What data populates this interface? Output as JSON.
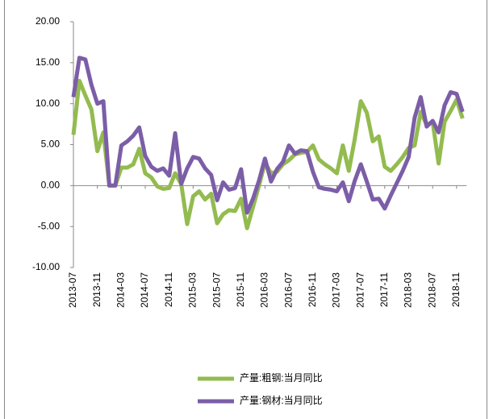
{
  "chart_data": {
    "type": "line",
    "categories": [
      "2013-07",
      null,
      null,
      null,
      "2013-11",
      null,
      null,
      null,
      "2014-03",
      null,
      null,
      null,
      "2014-07",
      null,
      null,
      null,
      "2014-11",
      null,
      null,
      null,
      "2015-03",
      null,
      null,
      null,
      "2015-07",
      null,
      null,
      null,
      "2015-11",
      null,
      null,
      null,
      "2016-03",
      null,
      null,
      null,
      "2016-07",
      null,
      null,
      null,
      "2016-11",
      null,
      null,
      null,
      "2017-03",
      null,
      null,
      null,
      "2017-07",
      null,
      null,
      null,
      "2017-11",
      null,
      null,
      null,
      "2018-03",
      null,
      null,
      null,
      "2018-07",
      null,
      null,
      null,
      "2018-11",
      null
    ],
    "series": [
      {
        "name": "产量:粗钢:当月同比",
        "color": "#93bb4f",
        "values": [
          6.2,
          12.8,
          11,
          9.3,
          4.2,
          6.5,
          0,
          0,
          2.2,
          2.2,
          2.6,
          4.5,
          1.5,
          1.0,
          -0.1,
          -0.4,
          -0.3,
          1.5,
          0.2,
          -4.7,
          -1.3,
          -0.7,
          -1.7,
          -1.0,
          -4.6,
          -3.5,
          -3.0,
          -3.1,
          -1.6,
          -5.2,
          -2.6,
          0,
          2.8,
          1.5,
          1.7,
          2.6,
          3.1,
          3.8,
          4.0,
          4.1,
          4.9,
          3.2,
          2.6,
          2.1,
          1.5,
          4.9,
          1.8,
          5.7,
          10.3,
          8.9,
          5.4,
          6.0,
          2.3,
          1.8,
          2.6,
          3.5,
          4.6,
          4.9,
          9.0,
          7.4,
          7.8,
          2.7,
          7.8,
          9.1,
          10.5,
          8.2
        ]
      },
      {
        "name": "产量:钢材:当月同比",
        "color": "#7b5ea7",
        "values": [
          10.8,
          15.6,
          15.4,
          12.3,
          10.0,
          10.3,
          0,
          0,
          4.9,
          5.4,
          6.1,
          7.1,
          3.6,
          2.3,
          1.8,
          2.1,
          1.2,
          6.4,
          0.2,
          2.1,
          3.5,
          3.3,
          2.1,
          1.3,
          -1.8,
          0.4,
          -0.5,
          -0.3,
          2.0,
          -3.3,
          -1.6,
          0.6,
          3.3,
          0.5,
          2.0,
          2.9,
          4.9,
          3.9,
          4.3,
          4.2,
          1.7,
          -0.2,
          -0.4,
          -0.5,
          -0.7,
          0.4,
          -1.9,
          0.6,
          2.6,
          0.5,
          -1.7,
          -1.6,
          -2.8,
          -1.2,
          0.3,
          1.8,
          3.5,
          8.3,
          10.8,
          7.2,
          7.9,
          6.5,
          9.8,
          11.4,
          11.2,
          9.0
        ]
      }
    ],
    "ylim": [
      -10,
      20
    ],
    "yticks": [
      {
        "value": -10,
        "label": "-10.00"
      },
      {
        "value": -5,
        "label": "-5.00"
      },
      {
        "value": 0,
        "label": "0.00"
      },
      {
        "value": 5,
        "label": "5.00"
      },
      {
        "value": 10,
        "label": "10.00"
      },
      {
        "value": 15,
        "label": "15.00"
      },
      {
        "value": 20,
        "label": "20.00"
      }
    ]
  }
}
